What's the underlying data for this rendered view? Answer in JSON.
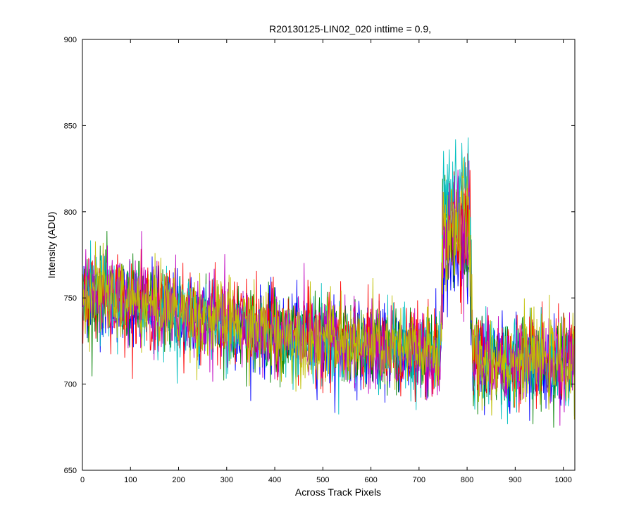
{
  "chart_data": {
    "type": "line",
    "title": "R20130125-LIN02_020 inttime = 0.9,",
    "xlabel": "Across Track Pixels",
    "ylabel": "Intensity (ADU)",
    "xlim": [
      0,
      1024
    ],
    "ylim": [
      650,
      900
    ],
    "xticks": [
      0,
      100,
      200,
      300,
      400,
      500,
      600,
      700,
      800,
      900,
      1000
    ],
    "yticks": [
      650,
      700,
      750,
      800,
      850,
      900
    ],
    "grid": false,
    "legend": "none",
    "noise_amplitude": 12,
    "series": [
      {
        "color": "#0000ff",
        "points": [
          [
            0,
            752
          ],
          [
            200,
            741
          ],
          [
            400,
            729
          ],
          [
            600,
            721
          ],
          [
            745,
            716
          ],
          [
            750,
            770
          ],
          [
            805,
            775
          ],
          [
            812,
            714
          ],
          [
            1024,
            712
          ]
        ]
      },
      {
        "color": "#008000",
        "points": [
          [
            0,
            754
          ],
          [
            200,
            742
          ],
          [
            400,
            730
          ],
          [
            600,
            721
          ],
          [
            745,
            717
          ],
          [
            750,
            790
          ],
          [
            805,
            782
          ],
          [
            812,
            714
          ],
          [
            1024,
            712
          ]
        ]
      },
      {
        "color": "#ff0000",
        "points": [
          [
            0,
            755
          ],
          [
            200,
            742
          ],
          [
            400,
            731
          ],
          [
            600,
            722
          ],
          [
            745,
            717
          ],
          [
            750,
            795
          ],
          [
            805,
            800
          ],
          [
            812,
            715
          ],
          [
            1024,
            713
          ]
        ]
      },
      {
        "color": "#00bfbf",
        "points": [
          [
            0,
            753
          ],
          [
            200,
            740
          ],
          [
            400,
            729
          ],
          [
            600,
            720
          ],
          [
            745,
            716
          ],
          [
            750,
            808
          ],
          [
            805,
            818
          ],
          [
            812,
            714
          ],
          [
            1024,
            711
          ]
        ]
      },
      {
        "color": "#bf00bf",
        "points": [
          [
            0,
            754
          ],
          [
            200,
            741
          ],
          [
            400,
            730
          ],
          [
            600,
            721
          ],
          [
            745,
            716
          ],
          [
            750,
            785
          ],
          [
            805,
            798
          ],
          [
            812,
            714
          ],
          [
            1024,
            712
          ]
        ]
      },
      {
        "color": "#bfbf00",
        "points": [
          [
            0,
            755
          ],
          [
            200,
            742
          ],
          [
            400,
            730
          ],
          [
            600,
            722
          ],
          [
            745,
            717
          ],
          [
            750,
            788
          ],
          [
            805,
            796
          ],
          [
            812,
            715
          ],
          [
            1024,
            713
          ]
        ]
      }
    ]
  }
}
